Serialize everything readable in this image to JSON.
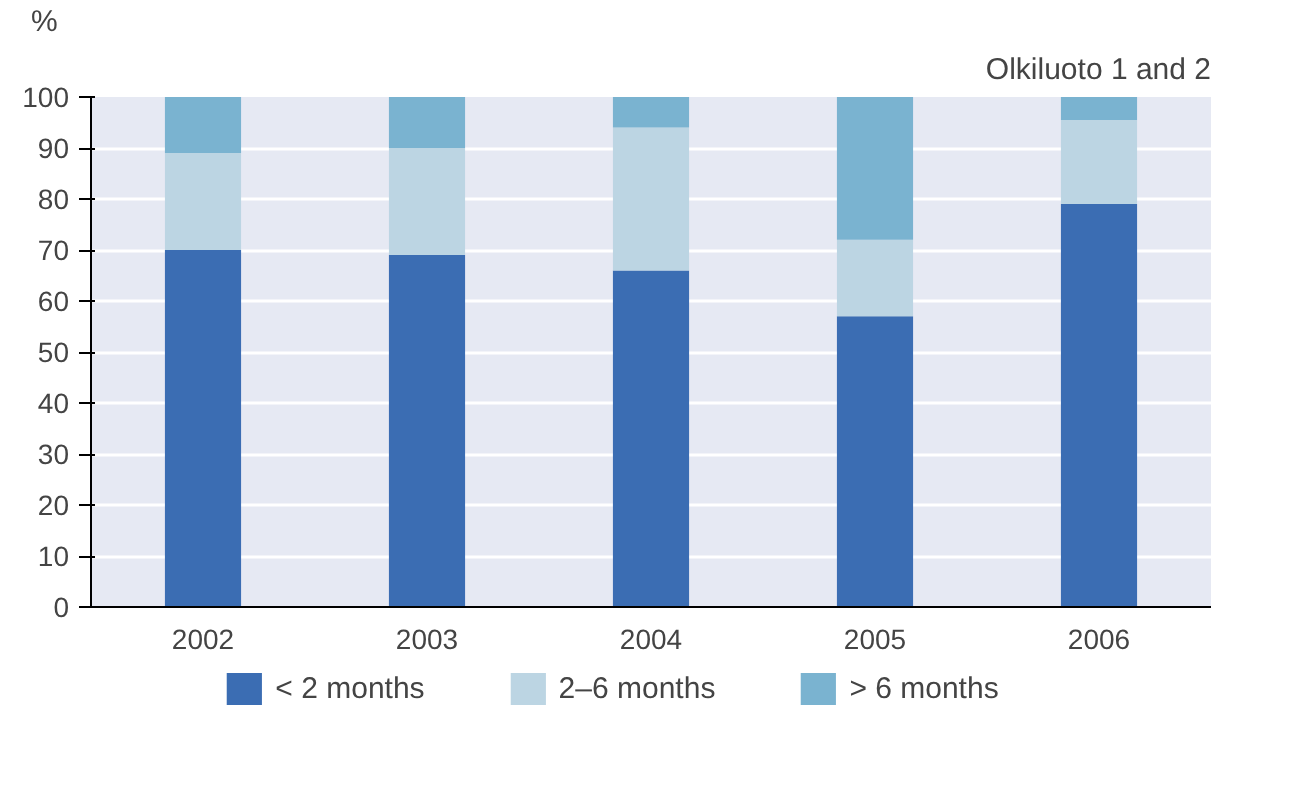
{
  "chart_data": {
    "type": "bar",
    "title": "Olkiluoto 1 and 2",
    "ylabel": "%",
    "stacked": true,
    "categories": [
      "2002",
      "2003",
      "2004",
      "2005",
      "2006"
    ],
    "series": [
      {
        "name": "< 2 months",
        "color": "#3b6db3",
        "values": [
          70,
          69,
          66,
          57,
          79
        ]
      },
      {
        "name": "2–6 months",
        "color": "#bcd5e3",
        "values": [
          19,
          21,
          28,
          15,
          16.5
        ]
      },
      {
        "name": "> 6 months",
        "color": "#7ab3d0",
        "values": [
          11,
          10,
          6,
          28,
          4.5
        ]
      }
    ],
    "ylim": [
      0,
      100
    ],
    "yticks": [
      0,
      10,
      20,
      30,
      40,
      50,
      60,
      70,
      80,
      90,
      100
    ],
    "grid": "y",
    "legend": "bottom"
  }
}
